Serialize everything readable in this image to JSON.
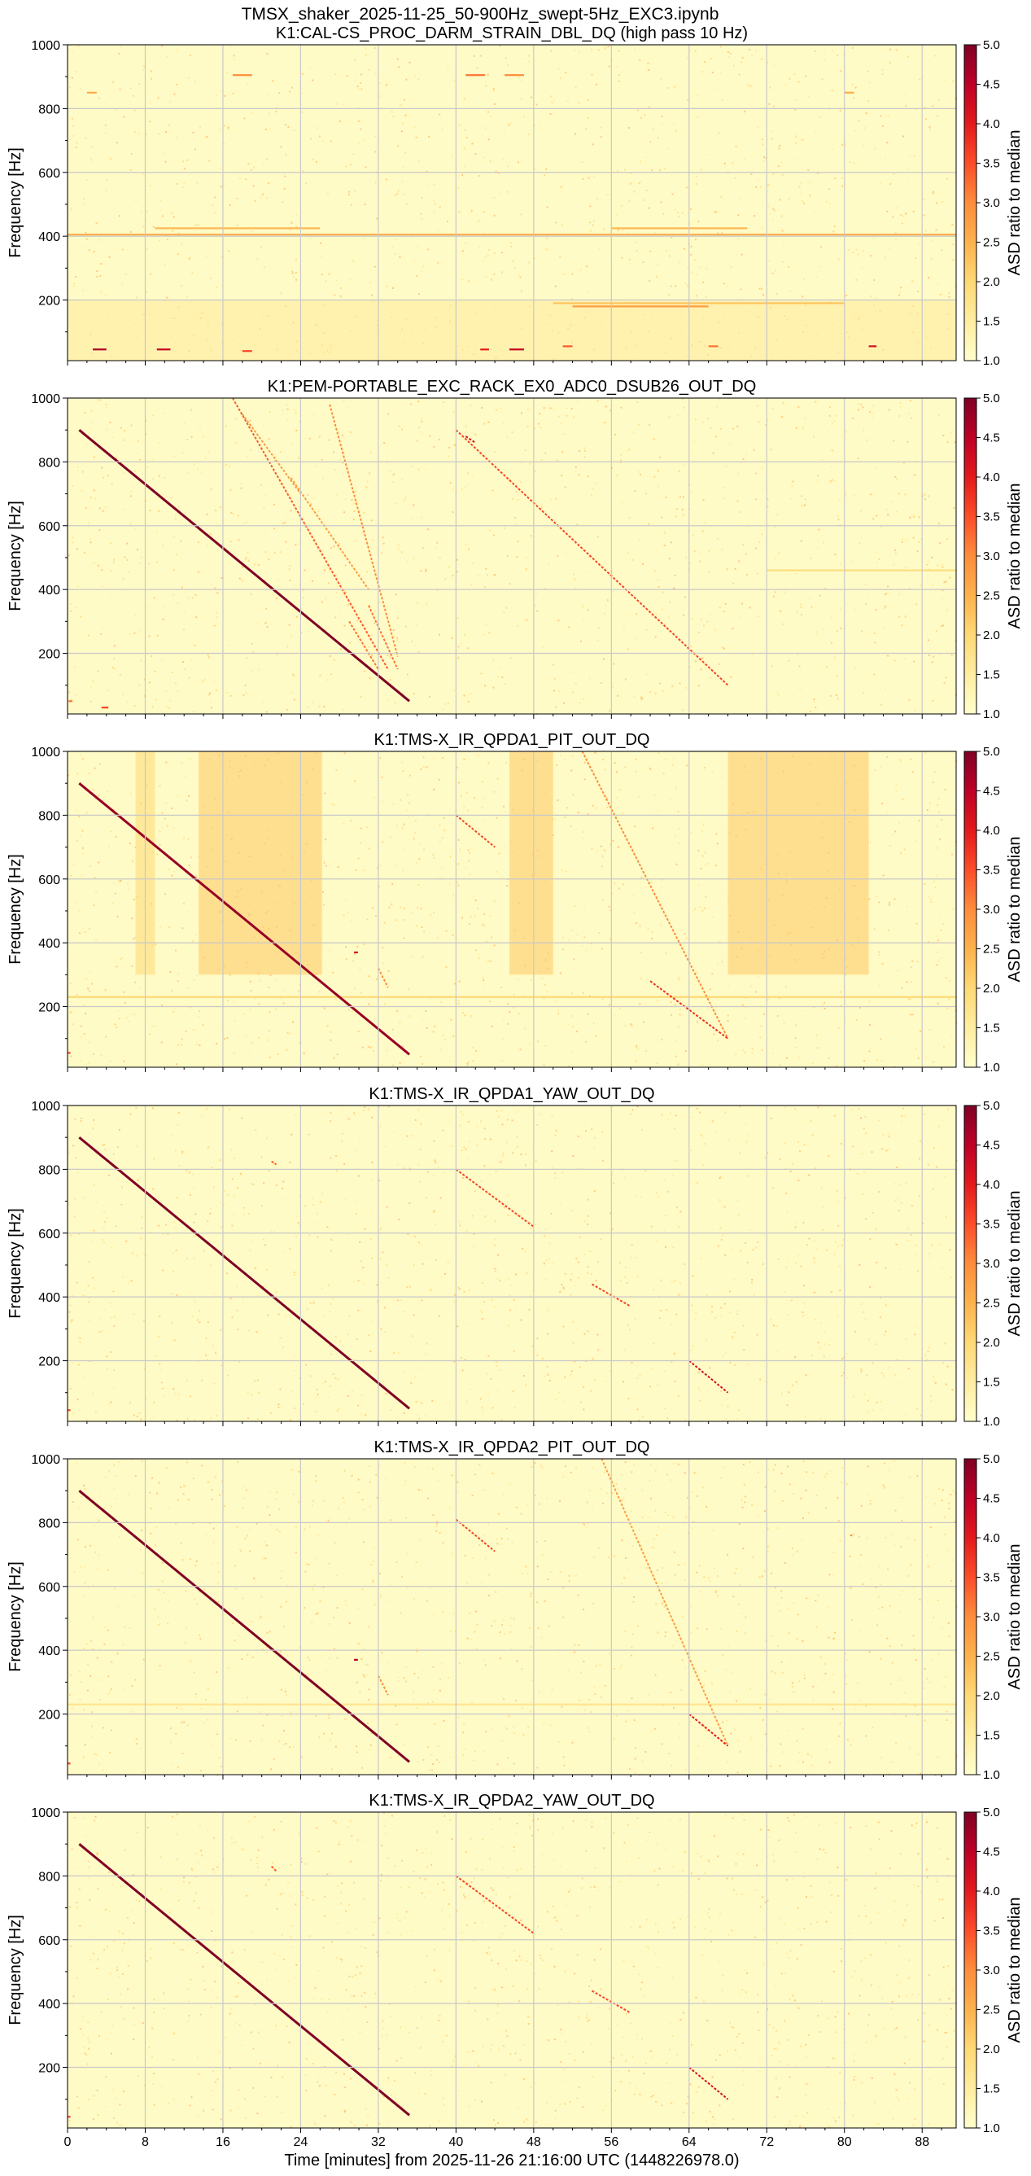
{
  "figure": {
    "suptitle": "TMSX_shaker_2025-11-25_50-900Hz_swept-5Hz_EXC3.ipynb",
    "xlabel": "Time [minutes] from 2025-11-26 21:16:00 UTC (1448226978.0)",
    "background_color": "#fffbc6",
    "grid": true,
    "colormap": [
      "#ffffcc",
      "#ffeda0",
      "#fed976",
      "#feb24c",
      "#fd8d3c",
      "#fc4e2a",
      "#e31a1c",
      "#bd0026",
      "#800026"
    ]
  },
  "chart_data": [
    {
      "type": "heatmap",
      "title": "K1:CAL-CS_PROC_DARM_STRAIN_DBL_DQ (high pass 10 Hz)",
      "ylabel": "Frequency [Hz]",
      "xlabel": "",
      "clabel": "ASD ratio to median",
      "xlim": [
        0,
        91.5
      ],
      "ylim": [
        10,
        1000
      ],
      "clim": [
        1.0,
        5.0
      ],
      "xticks": [
        0,
        8,
        16,
        24,
        32,
        40,
        48,
        56,
        64,
        72,
        80,
        88
      ],
      "yticks": [
        200,
        400,
        600,
        800,
        1000
      ],
      "cticks": [
        1.0,
        1.5,
        2.0,
        2.5,
        3.0,
        3.5,
        4.0,
        4.5,
        5.0
      ],
      "sweep_lines": [],
      "hlines": [
        {
          "f": 405,
          "t0": 0,
          "t1": 91.5,
          "v": 2.6
        },
        {
          "f": 425,
          "t0": 9,
          "t1": 26,
          "v": 2.4
        },
        {
          "f": 425,
          "t0": 56,
          "t1": 70,
          "v": 2.4
        },
        {
          "f": 190,
          "t0": 50,
          "t1": 80,
          "v": 2.3
        },
        {
          "f": 180,
          "t0": 52,
          "t1": 66,
          "v": 2.8
        },
        {
          "f": 905,
          "t0": 17,
          "t1": 19,
          "v": 3.0
        },
        {
          "f": 905,
          "t0": 41,
          "t1": 43,
          "v": 3.2
        },
        {
          "f": 905,
          "t0": 45,
          "t1": 47,
          "v": 3.0
        },
        {
          "f": 850,
          "t0": 2,
          "t1": 3,
          "v": 2.6
        },
        {
          "f": 850,
          "t0": 80,
          "t1": 81,
          "v": 2.6
        },
        {
          "f": 45,
          "t0": 2.6,
          "t1": 4,
          "v": 4.6
        },
        {
          "f": 45,
          "t0": 9.2,
          "t1": 10.6,
          "v": 4.4
        },
        {
          "f": 40,
          "t0": 18,
          "t1": 19,
          "v": 3.6
        },
        {
          "f": 45,
          "t0": 42.5,
          "t1": 43.4,
          "v": 4.0
        },
        {
          "f": 45,
          "t0": 45.5,
          "t1": 47,
          "v": 4.4
        },
        {
          "f": 55,
          "t0": 51,
          "t1": 52,
          "v": 3.4
        },
        {
          "f": 55,
          "t0": 66,
          "t1": 67,
          "v": 3.2
        },
        {
          "f": 55,
          "t0": 82.5,
          "t1": 83.3,
          "v": 4.2
        }
      ],
      "blocks": [
        {
          "t0": 0,
          "t1": 91.5,
          "f0": 10,
          "f1": 200,
          "v": 1.55
        }
      ]
    },
    {
      "type": "heatmap",
      "title": "K1:PEM-PORTABLE_EXC_RACK_EX0_ADC0_DSUB26_OUT_DQ",
      "ylabel": "Frequency [Hz]",
      "xlabel": "",
      "clabel": "ASD ratio to median",
      "xlim": [
        0,
        91.5
      ],
      "ylim": [
        10,
        1000
      ],
      "clim": [
        1.0,
        5.0
      ],
      "xticks": [
        0,
        8,
        16,
        24,
        32,
        40,
        48,
        56,
        64,
        72,
        80,
        88
      ],
      "yticks": [
        200,
        400,
        600,
        800,
        1000
      ],
      "cticks": [
        1.0,
        1.5,
        2.0,
        2.5,
        3.0,
        3.5,
        4.0,
        4.5,
        5.0
      ],
      "sweep_lines": [
        {
          "t0": 1.2,
          "f0": 900,
          "t1": 35.2,
          "f1": 50,
          "v": 5.0
        },
        {
          "t0": 17,
          "f0": 1000,
          "t1": 33,
          "f1": 150,
          "v": 3.4
        },
        {
          "t0": 27,
          "f0": 980,
          "t1": 34,
          "f1": 190,
          "v": 3.0
        },
        {
          "t0": 18,
          "f0": 950,
          "t1": 24,
          "f1": 700,
          "v": 2.8
        },
        {
          "t0": 23,
          "f0": 750,
          "t1": 31,
          "f1": 400,
          "v": 2.8
        },
        {
          "t0": 29,
          "f0": 300,
          "t1": 32,
          "f1": 150,
          "v": 3.2
        },
        {
          "t0": 31,
          "f0": 350,
          "t1": 34,
          "f1": 150,
          "v": 3.2
        },
        {
          "t0": 40,
          "f0": 900,
          "t1": 68,
          "f1": 100,
          "v": 3.6
        },
        {
          "t0": 41,
          "f0": 880,
          "t1": 42,
          "f1": 860,
          "v": 4.2
        }
      ],
      "hlines": [
        {
          "f": 460,
          "t0": 72,
          "t1": 91.5,
          "v": 1.9
        },
        {
          "f": 30,
          "t0": 3.5,
          "t1": 4.2,
          "v": 3.6
        },
        {
          "f": 50,
          "t0": 0.1,
          "t1": 0.5,
          "v": 3.2
        }
      ],
      "blocks": []
    },
    {
      "type": "heatmap",
      "title": "K1:TMS-X_IR_QPDA1_PIT_OUT_DQ",
      "ylabel": "Frequency [Hz]",
      "xlabel": "",
      "clabel": "ASD ratio to median",
      "xlim": [
        0,
        91.5
      ],
      "ylim": [
        10,
        1000
      ],
      "clim": [
        1.0,
        5.0
      ],
      "xticks": [
        0,
        8,
        16,
        24,
        32,
        40,
        48,
        56,
        64,
        72,
        80,
        88
      ],
      "yticks": [
        200,
        400,
        600,
        800,
        1000
      ],
      "cticks": [
        1.0,
        1.5,
        2.0,
        2.5,
        3.0,
        3.5,
        4.0,
        4.5,
        5.0
      ],
      "sweep_lines": [
        {
          "t0": 1.2,
          "f0": 900,
          "t1": 35.2,
          "f1": 50,
          "v": 4.8
        },
        {
          "t0": 53,
          "f0": 1000,
          "t1": 68,
          "f1": 100,
          "v": 3.0
        },
        {
          "t0": 40,
          "f0": 800,
          "t1": 44,
          "f1": 700,
          "v": 3.6
        },
        {
          "t0": 32,
          "f0": 320,
          "t1": 33,
          "f1": 260,
          "v": 3.0
        },
        {
          "t0": 60,
          "f0": 280,
          "t1": 68,
          "f1": 100,
          "v": 3.8
        }
      ],
      "hlines": [
        {
          "f": 230,
          "t0": 0,
          "t1": 91.5,
          "v": 2.0
        },
        {
          "f": 55,
          "t0": 0,
          "t1": 0.3,
          "v": 3.6
        },
        {
          "f": 370,
          "t0": 29.5,
          "t1": 29.9,
          "v": 4.2
        }
      ],
      "blocks": [
        {
          "t0": 7,
          "t1": 9,
          "f0": 300,
          "f1": 1000,
          "v": 2.0
        },
        {
          "t0": 13.5,
          "t1": 26.2,
          "f0": 300,
          "f1": 1000,
          "v": 2.2
        },
        {
          "t0": 45.5,
          "t1": 50,
          "f0": 300,
          "f1": 1000,
          "v": 2.2
        },
        {
          "t0": 68,
          "t1": 82.5,
          "f0": 300,
          "f1": 1000,
          "v": 2.2
        }
      ]
    },
    {
      "type": "heatmap",
      "title": "K1:TMS-X_IR_QPDA1_YAW_OUT_DQ",
      "ylabel": "Frequency [Hz]",
      "xlabel": "",
      "clabel": "ASD ratio to median",
      "xlim": [
        0,
        91.5
      ],
      "ylim": [
        10,
        1000
      ],
      "clim": [
        1.0,
        5.0
      ],
      "xticks": [
        0,
        8,
        16,
        24,
        32,
        40,
        48,
        56,
        64,
        72,
        80,
        88
      ],
      "yticks": [
        200,
        400,
        600,
        800,
        1000
      ],
      "cticks": [
        1.0,
        1.5,
        2.0,
        2.5,
        3.0,
        3.5,
        4.0,
        4.5,
        5.0
      ],
      "sweep_lines": [
        {
          "t0": 1.2,
          "f0": 900,
          "t1": 35.2,
          "f1": 50,
          "v": 5.0
        },
        {
          "t0": 40,
          "f0": 800,
          "t1": 48,
          "f1": 620,
          "v": 3.6
        },
        {
          "t0": 54,
          "f0": 440,
          "t1": 58,
          "f1": 370,
          "v": 3.6
        },
        {
          "t0": 64,
          "f0": 200,
          "t1": 68,
          "f1": 100,
          "v": 4.2
        },
        {
          "t0": 21,
          "f0": 825,
          "t1": 21.5,
          "f1": 815,
          "v": 3.4
        }
      ],
      "hlines": [
        {
          "f": 45,
          "t0": 0,
          "t1": 0.3,
          "v": 3.6
        },
        {
          "f": 800,
          "t0": 80.5,
          "t1": 80.7,
          "v": 2.2
        }
      ],
      "blocks": []
    },
    {
      "type": "heatmap",
      "title": "K1:TMS-X_IR_QPDA2_PIT_OUT_DQ",
      "ylabel": "Frequency [Hz]",
      "xlabel": "",
      "clabel": "ASD ratio to median",
      "xlim": [
        0,
        91.5
      ],
      "ylim": [
        10,
        1000
      ],
      "clim": [
        1.0,
        5.0
      ],
      "xticks": [
        0,
        8,
        16,
        24,
        32,
        40,
        48,
        56,
        64,
        72,
        80,
        88
      ],
      "yticks": [
        200,
        400,
        600,
        800,
        1000
      ],
      "cticks": [
        1.0,
        1.5,
        2.0,
        2.5,
        3.0,
        3.5,
        4.0,
        4.5,
        5.0
      ],
      "sweep_lines": [
        {
          "t0": 1.2,
          "f0": 900,
          "t1": 35.2,
          "f1": 50,
          "v": 5.0
        },
        {
          "t0": 55,
          "f0": 1000,
          "t1": 68,
          "f1": 100,
          "v": 2.8
        },
        {
          "t0": 40,
          "f0": 810,
          "t1": 44,
          "f1": 710,
          "v": 3.6
        },
        {
          "t0": 32,
          "f0": 320,
          "t1": 33,
          "f1": 260,
          "v": 3.0
        },
        {
          "t0": 64,
          "f0": 200,
          "t1": 68,
          "f1": 100,
          "v": 4.0
        }
      ],
      "hlines": [
        {
          "f": 230,
          "t0": 0,
          "t1": 91.5,
          "v": 1.7
        },
        {
          "f": 45,
          "t0": 0,
          "t1": 0.3,
          "v": 3.6
        },
        {
          "f": 370,
          "t0": 29.5,
          "t1": 29.9,
          "v": 4.6
        },
        {
          "f": 760,
          "t0": 80.6,
          "t1": 80.8,
          "v": 3.0
        }
      ],
      "blocks": []
    },
    {
      "type": "heatmap",
      "title": "K1:TMS-X_IR_QPDA2_YAW_OUT_DQ",
      "ylabel": "Frequency [Hz]",
      "xlabel": "Time [minutes] from 2025-11-26 21:16:00 UTC (1448226978.0)",
      "clabel": "ASD ratio to median",
      "xlim": [
        0,
        91.5
      ],
      "ylim": [
        10,
        1000
      ],
      "clim": [
        1.0,
        5.0
      ],
      "xticks": [
        0,
        8,
        16,
        24,
        32,
        40,
        48,
        56,
        64,
        72,
        80,
        88
      ],
      "yticks": [
        200,
        400,
        600,
        800,
        1000
      ],
      "cticks": [
        1.0,
        1.5,
        2.0,
        2.5,
        3.0,
        3.5,
        4.0,
        4.5,
        5.0
      ],
      "sweep_lines": [
        {
          "t0": 1.2,
          "f0": 900,
          "t1": 35.2,
          "f1": 50,
          "v": 5.0
        },
        {
          "t0": 40,
          "f0": 800,
          "t1": 48,
          "f1": 620,
          "v": 3.6
        },
        {
          "t0": 54,
          "f0": 440,
          "t1": 58,
          "f1": 370,
          "v": 3.6
        },
        {
          "t0": 64,
          "f0": 200,
          "t1": 68,
          "f1": 100,
          "v": 4.2
        },
        {
          "t0": 21,
          "f0": 830,
          "t1": 21.5,
          "f1": 815,
          "v": 3.4
        }
      ],
      "hlines": [
        {
          "f": 45,
          "t0": 0,
          "t1": 0.3,
          "v": 3.6
        }
      ],
      "blocks": []
    }
  ]
}
